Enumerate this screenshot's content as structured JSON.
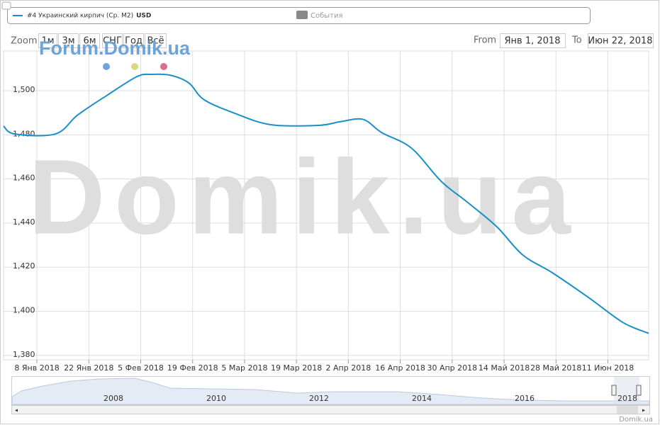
{
  "chart_data": {
    "type": "line",
    "series": [
      {
        "name": "#4 Украинский кирпич (Ср. М2)",
        "unit": "USD",
        "color": "#1a8fc8",
        "values": [
          1484,
          1480.4,
          1480.4,
          1489,
          1498,
          1506.4,
          1507.4,
          1507,
          1503.5,
          1496,
          1490,
          1484.6,
          1484.3,
          1486,
          1487,
          1481,
          1474,
          1459,
          1449.6,
          1438.4,
          1425.6,
          1417.5,
          1406,
          1395,
          1390
        ]
      }
    ],
    "x": [
      "2017-12-30",
      "2018-01-02",
      "2018-01-13",
      "2018-01-19",
      "2018-01-27",
      "2018-02-04",
      "2018-02-08",
      "2018-02-13",
      "2018-02-18",
      "2018-02-22",
      "2018-03-02",
      "2018-03-12",
      "2018-03-25",
      "2018-03-31",
      "2018-04-06",
      "2018-04-11",
      "2018-04-19",
      "2018-04-27",
      "2018-05-04",
      "2018-05-12",
      "2018-05-19",
      "2018-05-27",
      "2018-06-06",
      "2018-06-15",
      "2018-06-22"
    ],
    "xlim": [
      "2017-12-30",
      "2018-06-22"
    ],
    "xticks": [
      {
        "value": "2018-01-08",
        "label": "8 Янв 2018"
      },
      {
        "value": "2018-01-22",
        "label": "22 Янв 2018"
      },
      {
        "value": "2018-02-05",
        "label": "5 Фев 2018"
      },
      {
        "value": "2018-02-19",
        "label": "19 Фев 2018"
      },
      {
        "value": "2018-03-05",
        "label": "5 Мар 2018"
      },
      {
        "value": "2018-03-19",
        "label": "19 Мар 2018"
      },
      {
        "value": "2018-04-02",
        "label": "2 Апр 2018"
      },
      {
        "value": "2018-04-16",
        "label": "16 Апр 2018"
      },
      {
        "value": "2018-04-30",
        "label": "30 Апр 2018"
      },
      {
        "value": "2018-05-14",
        "label": "14 Май 2018"
      },
      {
        "value": "2018-05-28",
        "label": "28 Май 2018"
      },
      {
        "value": "2018-06-11",
        "label": "11 Июн 2018"
      }
    ],
    "ylim": [
      1378,
      1518
    ],
    "yticks": [
      {
        "value": 1380,
        "label": "1,380"
      },
      {
        "value": 1400,
        "label": "1,400"
      },
      {
        "value": 1420,
        "label": "1,420"
      },
      {
        "value": 1440,
        "label": "1,440"
      },
      {
        "value": 1460,
        "label": "1,460"
      },
      {
        "value": 1480,
        "label": "1,480"
      },
      {
        "value": 1500,
        "label": "1,500"
      }
    ],
    "grid": true
  },
  "legend": {
    "events": "События"
  },
  "range_selector": {
    "zoom": "Zoom",
    "buttons": [
      "1м",
      "3м",
      "6м",
      "СНГ",
      "Год",
      "Всё"
    ],
    "from_label": "From",
    "from": "Янв 1, 2018",
    "to_label": "To",
    "to": "Июн 22, 2018"
  },
  "watermarks": {
    "forum": "Forum.Domik.ua",
    "big": "Domik.ua"
  },
  "navigator": {
    "years": [
      "2008",
      "2010",
      "2012",
      "2014",
      "2016",
      "2018"
    ]
  },
  "credit": "Domik.ua"
}
